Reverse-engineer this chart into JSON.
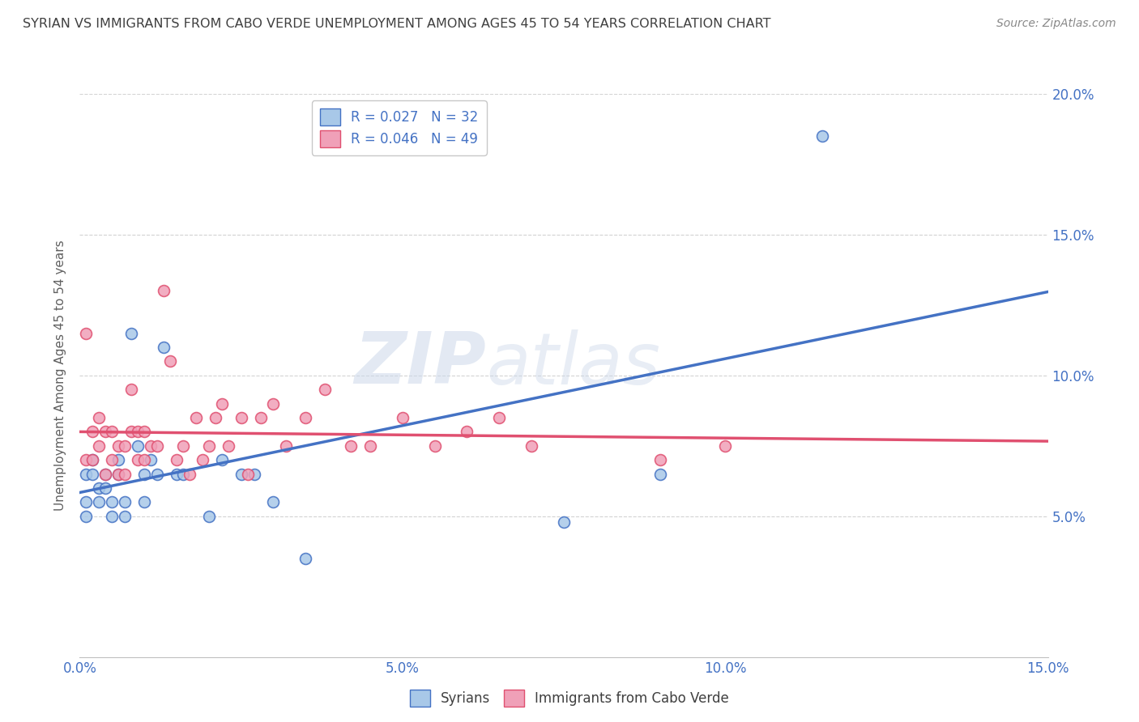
{
  "title": "SYRIAN VS IMMIGRANTS FROM CABO VERDE UNEMPLOYMENT AMONG AGES 45 TO 54 YEARS CORRELATION CHART",
  "source": "Source: ZipAtlas.com",
  "ylabel": "Unemployment Among Ages 45 to 54 years",
  "xmin": 0.0,
  "xmax": 0.15,
  "ymin": 0.0,
  "ymax": 0.2,
  "yticks": [
    0.05,
    0.1,
    0.15,
    0.2
  ],
  "ytick_labels": [
    "5.0%",
    "10.0%",
    "15.0%",
    "20.0%"
  ],
  "xticks": [
    0.0,
    0.05,
    0.1,
    0.15
  ],
  "xtick_labels": [
    "0.0%",
    "5.0%",
    "10.0%",
    "15.0%"
  ],
  "watermark_zip": "ZIP",
  "watermark_atlas": "atlas",
  "color_syrians": "#a8c8e8",
  "color_cabo": "#f0a0b8",
  "line_color_syrians": "#4472c4",
  "line_color_cabo": "#e05070",
  "title_color": "#404040",
  "source_color": "#888888",
  "axis_label_color": "#606060",
  "tick_color": "#4472c4",
  "background_color": "#ffffff",
  "grid_color": "#c8c8c8",
  "syrians_x": [
    0.001,
    0.001,
    0.001,
    0.002,
    0.002,
    0.003,
    0.003,
    0.004,
    0.004,
    0.005,
    0.005,
    0.006,
    0.006,
    0.007,
    0.007,
    0.008,
    0.009,
    0.01,
    0.01,
    0.011,
    0.012,
    0.013,
    0.015,
    0.016,
    0.02,
    0.022,
    0.025,
    0.027,
    0.03,
    0.035,
    0.075,
    0.09,
    0.115
  ],
  "syrians_y": [
    0.065,
    0.055,
    0.05,
    0.07,
    0.065,
    0.06,
    0.055,
    0.065,
    0.06,
    0.055,
    0.05,
    0.07,
    0.065,
    0.05,
    0.055,
    0.115,
    0.075,
    0.055,
    0.065,
    0.07,
    0.065,
    0.11,
    0.065,
    0.065,
    0.05,
    0.07,
    0.065,
    0.065,
    0.055,
    0.035,
    0.048,
    0.065,
    0.185
  ],
  "cabo_x": [
    0.001,
    0.001,
    0.002,
    0.002,
    0.003,
    0.003,
    0.004,
    0.004,
    0.005,
    0.005,
    0.006,
    0.006,
    0.007,
    0.007,
    0.008,
    0.008,
    0.009,
    0.009,
    0.01,
    0.01,
    0.011,
    0.012,
    0.013,
    0.014,
    0.015,
    0.016,
    0.017,
    0.018,
    0.019,
    0.02,
    0.021,
    0.022,
    0.023,
    0.025,
    0.026,
    0.028,
    0.03,
    0.032,
    0.035,
    0.038,
    0.042,
    0.045,
    0.05,
    0.055,
    0.06,
    0.065,
    0.07,
    0.09,
    0.1
  ],
  "cabo_y": [
    0.115,
    0.07,
    0.08,
    0.07,
    0.085,
    0.075,
    0.065,
    0.08,
    0.07,
    0.08,
    0.065,
    0.075,
    0.075,
    0.065,
    0.08,
    0.095,
    0.07,
    0.08,
    0.07,
    0.08,
    0.075,
    0.075,
    0.13,
    0.105,
    0.07,
    0.075,
    0.065,
    0.085,
    0.07,
    0.075,
    0.085,
    0.09,
    0.075,
    0.085,
    0.065,
    0.085,
    0.09,
    0.075,
    0.085,
    0.095,
    0.075,
    0.075,
    0.085,
    0.075,
    0.08,
    0.085,
    0.075,
    0.07,
    0.075
  ]
}
